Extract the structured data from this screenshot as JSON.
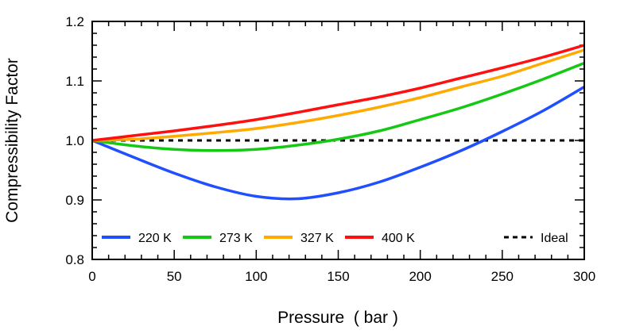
{
  "chart_data": {
    "type": "line",
    "title": "",
    "xlabel": "Pressure  ( bar )",
    "ylabel": "Compressibility Factor",
    "xlim": [
      0,
      300
    ],
    "ylim": [
      0.8,
      1.2
    ],
    "xticks": [
      "0",
      "50",
      "100",
      "150",
      "200",
      "250",
      "300"
    ],
    "yticks": [
      "0.8",
      "0.9",
      "1.0",
      "1.1",
      "1.2"
    ],
    "grid": false,
    "legend_position": "bottom-inside",
    "x": [
      0,
      25,
      50,
      75,
      100,
      125,
      150,
      175,
      200,
      225,
      250,
      275,
      300
    ],
    "series": [
      {
        "name": "220 K",
        "color": "#1f4fff",
        "dash": false,
        "values": [
          1.0,
          0.972,
          0.945,
          0.922,
          0.906,
          0.902,
          0.912,
          0.93,
          0.955,
          0.983,
          1.015,
          1.05,
          1.09
        ]
      },
      {
        "name": "273 K",
        "color": "#14c814",
        "dash": false,
        "values": [
          1.0,
          0.991,
          0.985,
          0.983,
          0.985,
          0.992,
          1.002,
          1.016,
          1.035,
          1.055,
          1.078,
          1.103,
          1.13
        ]
      },
      {
        "name": "327 K",
        "color": "#ffaa00",
        "dash": false,
        "values": [
          1.0,
          1.002,
          1.007,
          1.013,
          1.02,
          1.03,
          1.042,
          1.056,
          1.072,
          1.09,
          1.108,
          1.13,
          1.152
        ]
      },
      {
        "name": "400 K",
        "color": "#ff1010",
        "dash": false,
        "values": [
          1.0,
          1.008,
          1.016,
          1.025,
          1.035,
          1.047,
          1.06,
          1.073,
          1.088,
          1.105,
          1.122,
          1.14,
          1.16
        ]
      },
      {
        "name": "Ideal",
        "color": "#000000",
        "dash": true,
        "values": [
          1.0,
          1.0,
          1.0,
          1.0,
          1.0,
          1.0,
          1.0,
          1.0,
          1.0,
          1.0,
          1.0,
          1.0,
          1.0
        ]
      }
    ]
  }
}
